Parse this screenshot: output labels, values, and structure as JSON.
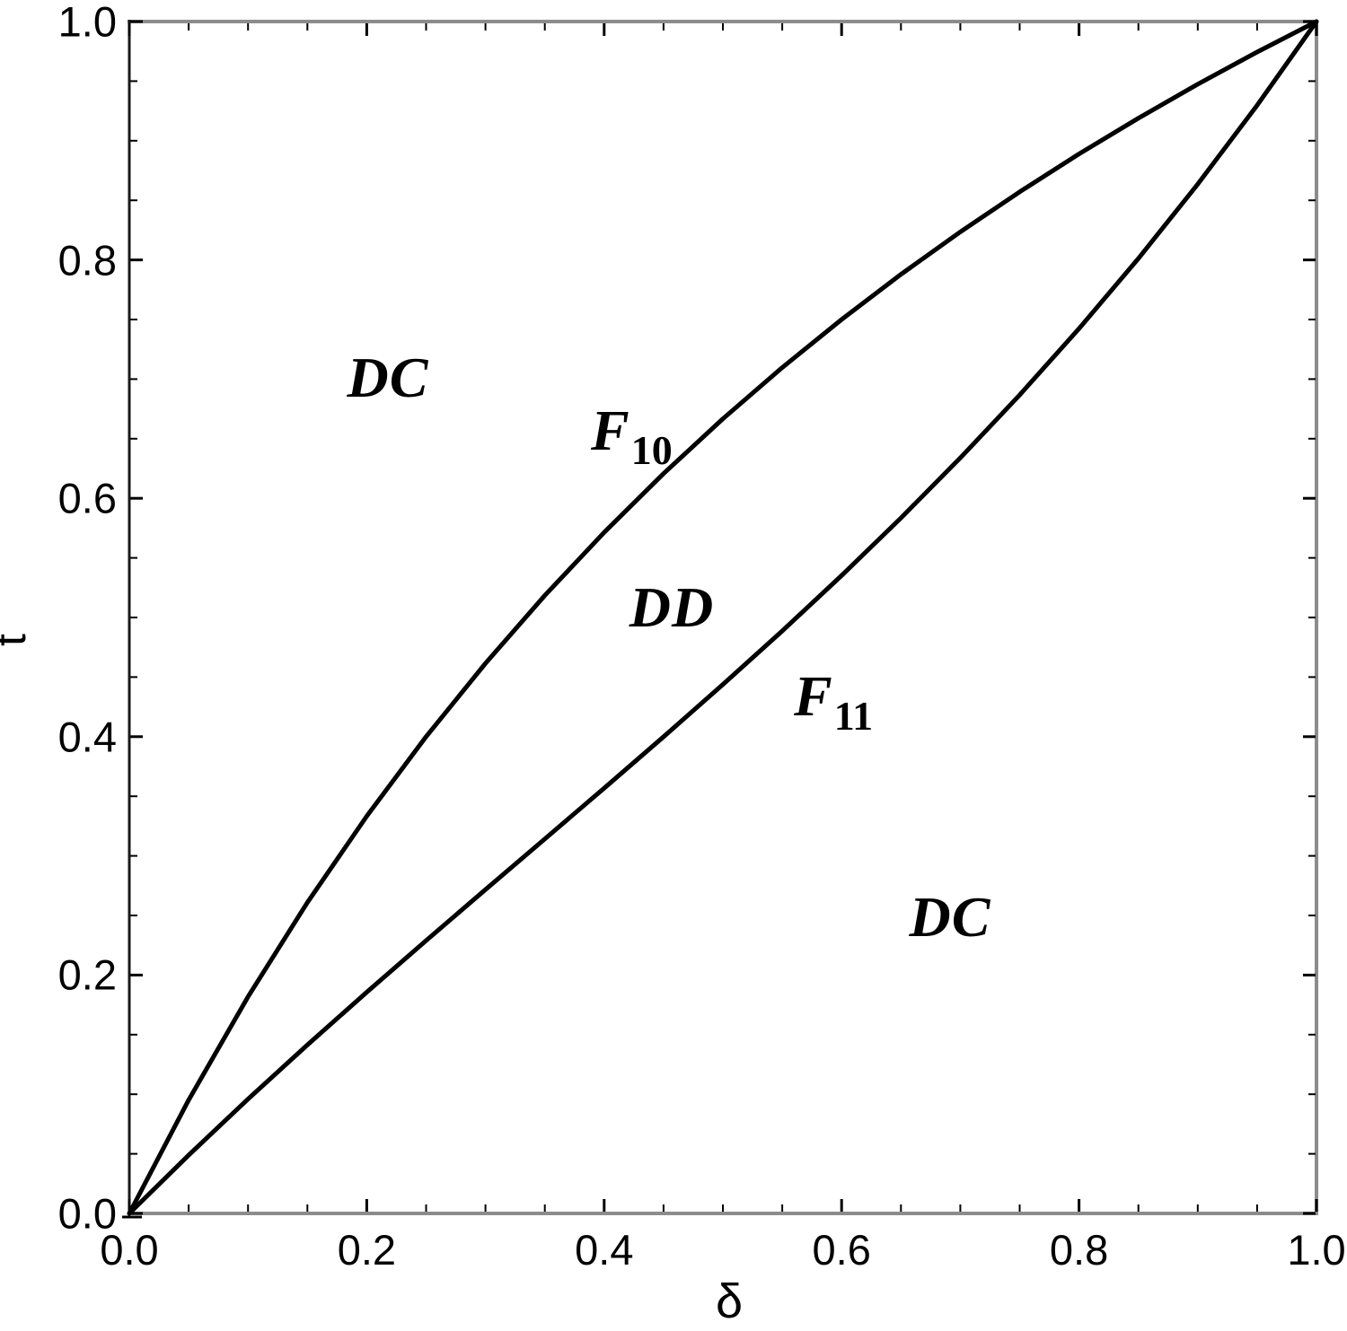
{
  "figure": {
    "colors": {
      "background": "#ffffff",
      "curve": "#000000",
      "frame": "#8c8c8c",
      "left_axis": "#1a1a1a",
      "tick": "#000000",
      "text": "#000000"
    }
  },
  "chart_data": {
    "type": "line",
    "title": "",
    "xlabel": "δ",
    "ylabel": "t",
    "xlim": [
      0,
      1
    ],
    "ylim": [
      0,
      1
    ],
    "grid": false,
    "legend": "none",
    "frame": "box with inward ticks",
    "x_tick_labels": [
      "0.0",
      "0.2",
      "0.4",
      "0.6",
      "0.8",
      "1.0"
    ],
    "y_tick_labels": [
      "1.0",
      "0.8",
      "0.6",
      "0.4",
      "0.2",
      "0.0"
    ],
    "x_major_ticks": [
      0,
      0.2,
      0.4,
      0.6,
      0.8,
      1.0
    ],
    "y_major_ticks": [
      0,
      0.2,
      0.4,
      0.6,
      0.8,
      1.0
    ],
    "x_minor_ticks": [
      0.05,
      0.1,
      0.15,
      0.25,
      0.3,
      0.35,
      0.45,
      0.5,
      0.55,
      0.65,
      0.7,
      0.75,
      0.85,
      0.9,
      0.95
    ],
    "y_minor_ticks": [
      0.05,
      0.1,
      0.15,
      0.25,
      0.3,
      0.35,
      0.45,
      0.5,
      0.55,
      0.65,
      0.7,
      0.75,
      0.85,
      0.9,
      0.95
    ],
    "series": [
      {
        "name": "F10",
        "label_base": "F",
        "label_sub": "10",
        "description": "upper boundary curve, concave, from (0,0) to (1,1), approx t = 2*delta/(1+delta)",
        "x": [
          0,
          0.05,
          0.1,
          0.15,
          0.2,
          0.25,
          0.3,
          0.35,
          0.4,
          0.45,
          0.5,
          0.55,
          0.6,
          0.65,
          0.7,
          0.75,
          0.8,
          0.85,
          0.9,
          0.95,
          1.0
        ],
        "y": [
          0,
          0.0952,
          0.1818,
          0.2609,
          0.3333,
          0.4,
          0.4615,
          0.5185,
          0.5714,
          0.6207,
          0.6667,
          0.7097,
          0.75,
          0.7879,
          0.8235,
          0.8571,
          0.8889,
          0.9189,
          0.9474,
          0.9744,
          1.0
        ]
      },
      {
        "name": "F11",
        "label_base": "F",
        "label_sub": "11",
        "description": "lower boundary curve, slightly below diagonal, from (0,0) to (1,1)",
        "x": [
          0,
          0.05,
          0.1,
          0.15,
          0.2,
          0.25,
          0.3,
          0.35,
          0.4,
          0.45,
          0.5,
          0.55,
          0.6,
          0.65,
          0.7,
          0.75,
          0.8,
          0.85,
          0.9,
          0.95,
          1.0
        ],
        "y": [
          0,
          0.0489,
          0.096,
          0.1414,
          0.1856,
          0.2289,
          0.2717,
          0.3142,
          0.3568,
          0.3999,
          0.4438,
          0.4887,
          0.5352,
          0.5835,
          0.6339,
          0.6867,
          0.7424,
          0.8012,
          0.8636,
          0.9297,
          1.0
        ]
      }
    ],
    "region_labels": [
      {
        "text": "DC",
        "position": "upper left, above F10 curve"
      },
      {
        "text": "DD",
        "position": "between F10 and F11 curves"
      },
      {
        "text": "DC",
        "position": "lower right, below F11 curve"
      }
    ]
  }
}
